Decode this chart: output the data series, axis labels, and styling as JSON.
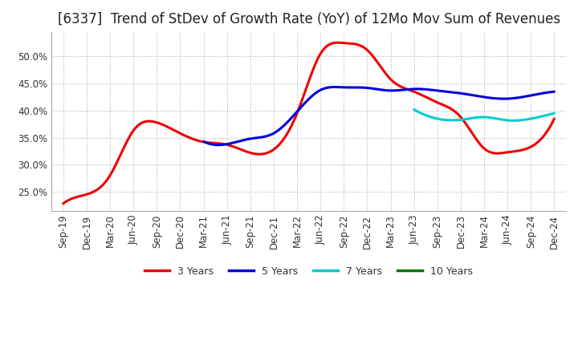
{
  "title": "[6337]  Trend of StDev of Growth Rate (YoY) of 12Mo Mov Sum of Revenues",
  "ylim": [
    0.215,
    0.545
  ],
  "yticks": [
    0.25,
    0.3,
    0.35,
    0.4,
    0.45,
    0.5
  ],
  "line_colors": {
    "3y": "#ee0000",
    "5y": "#0000dd",
    "7y": "#00cccc",
    "10y": "#007700"
  },
  "line_widths": {
    "3y": 2.2,
    "5y": 2.2,
    "7y": 2.2,
    "10y": 2.2
  },
  "background_color": "#ffffff",
  "grid_color": "#aaaaaa",
  "title_fontsize": 12,
  "tick_fontsize": 8.5,
  "x_dates": [
    "Sep-19",
    "Dec-19",
    "Mar-20",
    "Jun-20",
    "Sep-20",
    "Dec-20",
    "Mar-21",
    "Jun-21",
    "Sep-21",
    "Dec-21",
    "Mar-22",
    "Jun-22",
    "Sep-22",
    "Dec-22",
    "Mar-23",
    "Jun-23",
    "Sep-23",
    "Dec-23",
    "Mar-24",
    "Jun-24",
    "Sep-24",
    "Dec-24"
  ],
  "series_3y": [
    0.228,
    0.245,
    0.28,
    0.363,
    0.378,
    0.358,
    0.342,
    0.337,
    0.322,
    0.328,
    0.395,
    0.505,
    0.525,
    0.512,
    0.458,
    0.435,
    0.415,
    0.388,
    0.33,
    0.323,
    0.333,
    0.385
  ],
  "series_5y": [
    null,
    null,
    null,
    null,
    null,
    null,
    0.343,
    0.338,
    0.348,
    0.358,
    0.398,
    0.438,
    0.443,
    0.442,
    0.437,
    0.44,
    0.437,
    0.432,
    0.425,
    0.422,
    0.428,
    0.435
  ],
  "series_7y": [
    null,
    null,
    null,
    null,
    null,
    null,
    null,
    null,
    null,
    null,
    null,
    null,
    null,
    null,
    null,
    0.402,
    0.385,
    0.383,
    0.388,
    0.382,
    0.385,
    0.395
  ],
  "series_10y": [
    null,
    null,
    null,
    null,
    null,
    null,
    null,
    null,
    null,
    null,
    null,
    null,
    null,
    null,
    null,
    null,
    null,
    null,
    null,
    null,
    null,
    null
  ]
}
